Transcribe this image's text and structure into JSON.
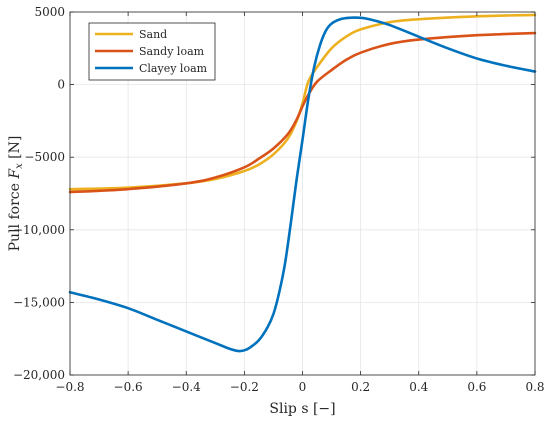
{
  "chart_data": {
    "type": "line",
    "xlabel": "Slip s [−]",
    "ylabel_prefix": "Pull force ",
    "ylabel_var": "F",
    "ylabel_sub": "x",
    "ylabel_unit": " [N]",
    "xlim": [
      -0.8,
      0.8
    ],
    "ylim": [
      -20000,
      5000
    ],
    "grid": true,
    "legend_position": "top-left",
    "xticks": [
      -0.8,
      -0.6,
      -0.4,
      -0.2,
      0,
      0.2,
      0.4,
      0.6,
      0.8
    ],
    "xtick_labels": [
      "−0.8",
      "−0.6",
      "−0.4",
      "−0.2",
      "0",
      "0.2",
      "0.4",
      "0.6",
      "0.8"
    ],
    "yticks": [
      5000,
      0,
      -5000,
      -10000,
      -15000,
      -20000
    ],
    "ytick_labels": [
      "5000",
      "0",
      "−5000",
      "−10,000",
      "−15,000",
      "−20,000"
    ],
    "series": [
      {
        "name": "Sand",
        "color": "#EDB120",
        "x": [
          -0.8,
          -0.6,
          -0.4,
          -0.3,
          -0.2,
          -0.15,
          -0.1,
          -0.05,
          -0.02,
          0,
          0.02,
          0.05,
          0.1,
          0.15,
          0.2,
          0.3,
          0.4,
          0.6,
          0.8
        ],
        "y": [
          -7200,
          -7100,
          -6800,
          -6500,
          -5950,
          -5500,
          -4800,
          -3700,
          -2500,
          -1300,
          200,
          1200,
          2500,
          3300,
          3800,
          4300,
          4500,
          4700,
          4800
        ]
      },
      {
        "name": "Sandy loam",
        "color": "#D95319",
        "x": [
          -0.8,
          -0.6,
          -0.4,
          -0.3,
          -0.2,
          -0.15,
          -0.1,
          -0.05,
          -0.02,
          0,
          0.02,
          0.05,
          0.1,
          0.15,
          0.2,
          0.3,
          0.4,
          0.6,
          0.8
        ],
        "y": [
          -7400,
          -7200,
          -6800,
          -6400,
          -5700,
          -5100,
          -4400,
          -3400,
          -2400,
          -1500,
          -700,
          200,
          1000,
          1700,
          2200,
          2800,
          3100,
          3400,
          3550
        ]
      },
      {
        "name": "Clayey loam",
        "color": "#0072BD",
        "x": [
          -0.8,
          -0.7,
          -0.6,
          -0.5,
          -0.4,
          -0.3,
          -0.25,
          -0.22,
          -0.2,
          -0.18,
          -0.15,
          -0.12,
          -0.1,
          -0.08,
          -0.06,
          -0.04,
          -0.02,
          0,
          0.02,
          0.04,
          0.06,
          0.08,
          0.1,
          0.13,
          0.16,
          0.2,
          0.23,
          0.3,
          0.4,
          0.5,
          0.6,
          0.7,
          0.8
        ],
        "y": [
          -14300,
          -14800,
          -15400,
          -16200,
          -17000,
          -17800,
          -18200,
          -18350,
          -18300,
          -18100,
          -17600,
          -16700,
          -15800,
          -14300,
          -12300,
          -9500,
          -6500,
          -3800,
          -1000,
          1200,
          2700,
          3700,
          4200,
          4500,
          4600,
          4600,
          4500,
          4100,
          3300,
          2500,
          1800,
          1300,
          900
        ]
      }
    ]
  }
}
